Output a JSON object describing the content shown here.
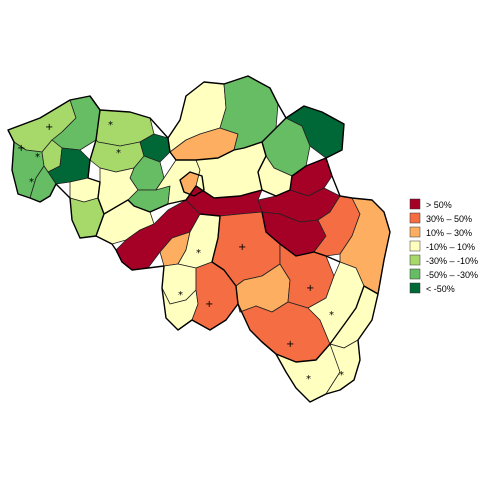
{
  "legend": {
    "items": [
      {
        "label": "  > 50%",
        "color": "#a50026"
      },
      {
        "label": "30%  –   50%",
        "color": "#f46d43"
      },
      {
        "label": "10%  –   30%",
        "color": "#fdae61"
      },
      {
        "label": "-10%  –   10%",
        "color": "#ffffbf"
      },
      {
        "label": "-30%  –  -10%",
        "color": "#a6d96a"
      },
      {
        "label": "-50%  –  -30%",
        "color": "#66bd63"
      },
      {
        "label": "  < -50%",
        "color": "#006837"
      }
    ]
  },
  "markers": {
    "plus": "+",
    "star": "*"
  }
}
